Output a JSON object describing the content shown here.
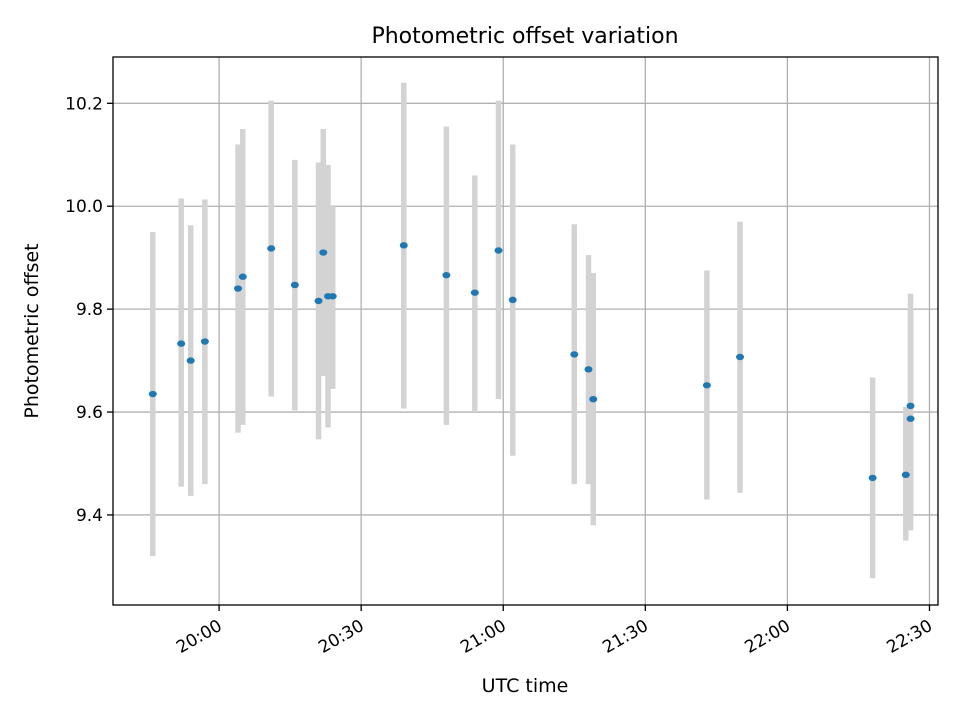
{
  "chart_data": {
    "type": "scatter",
    "title": "Photometric offset variation",
    "xlabel": "UTC time",
    "ylabel": "Photometric offset",
    "xlim": [
      "19:45",
      "22:30"
    ],
    "ylim": [
      9.225,
      10.29
    ],
    "x_ticks": [
      "20:00",
      "20:30",
      "21:00",
      "21:30",
      "22:00",
      "22:30"
    ],
    "y_ticks": [
      "9.4",
      "9.6",
      "9.8",
      "10.0",
      "10.2"
    ],
    "grid": true,
    "colors": {
      "point": "#1f77b4",
      "errorbar": "#d3d3d3",
      "grid": "#b0b0b0"
    },
    "points": [
      {
        "x": "19:46",
        "y": 9.635,
        "lo": 9.32,
        "hi": 9.95
      },
      {
        "x": "19:52",
        "y": 9.733,
        "lo": 9.455,
        "hi": 10.015
      },
      {
        "x": "19:54",
        "y": 9.7,
        "lo": 9.437,
        "hi": 9.963
      },
      {
        "x": "19:57",
        "y": 9.737,
        "lo": 9.46,
        "hi": 10.013
      },
      {
        "x": "20:04",
        "y": 9.84,
        "lo": 9.56,
        "hi": 10.12
      },
      {
        "x": "20:05",
        "y": 9.863,
        "lo": 9.575,
        "hi": 10.15
      },
      {
        "x": "20:11",
        "y": 9.918,
        "lo": 9.63,
        "hi": 10.205
      },
      {
        "x": "20:16",
        "y": 9.847,
        "lo": 9.603,
        "hi": 10.09
      },
      {
        "x": "20:21",
        "y": 9.816,
        "lo": 9.547,
        "hi": 10.085
      },
      {
        "x": "20:22",
        "y": 9.91,
        "lo": 9.67,
        "hi": 10.15
      },
      {
        "x": "20:23",
        "y": 9.825,
        "lo": 9.57,
        "hi": 10.08
      },
      {
        "x": "20:24",
        "y": 9.825,
        "lo": 9.645,
        "hi": 10.0
      },
      {
        "x": "20:39",
        "y": 9.924,
        "lo": 9.607,
        "hi": 10.24
      },
      {
        "x": "20:48",
        "y": 9.866,
        "lo": 9.575,
        "hi": 10.155
      },
      {
        "x": "20:54",
        "y": 9.832,
        "lo": 9.6,
        "hi": 10.06
      },
      {
        "x": "20:59",
        "y": 9.914,
        "lo": 9.625,
        "hi": 10.205
      },
      {
        "x": "21:02",
        "y": 9.818,
        "lo": 9.515,
        "hi": 10.12
      },
      {
        "x": "21:15",
        "y": 9.712,
        "lo": 9.46,
        "hi": 9.965
      },
      {
        "x": "21:18",
        "y": 9.683,
        "lo": 9.46,
        "hi": 9.905
      },
      {
        "x": "21:19",
        "y": 9.625,
        "lo": 9.38,
        "hi": 9.87
      },
      {
        "x": "21:43",
        "y": 9.652,
        "lo": 9.43,
        "hi": 9.875
      },
      {
        "x": "21:50",
        "y": 9.707,
        "lo": 9.443,
        "hi": 9.97
      },
      {
        "x": "22:18",
        "y": 9.472,
        "lo": 9.277,
        "hi": 9.667
      },
      {
        "x": "22:25",
        "y": 9.478,
        "lo": 9.35,
        "hi": 9.61
      },
      {
        "x": "22:26",
        "y": 9.612,
        "lo": 9.39,
        "hi": 9.83
      },
      {
        "x": "22:26",
        "y": 9.587,
        "lo": 9.37,
        "hi": 9.8
      }
    ]
  }
}
